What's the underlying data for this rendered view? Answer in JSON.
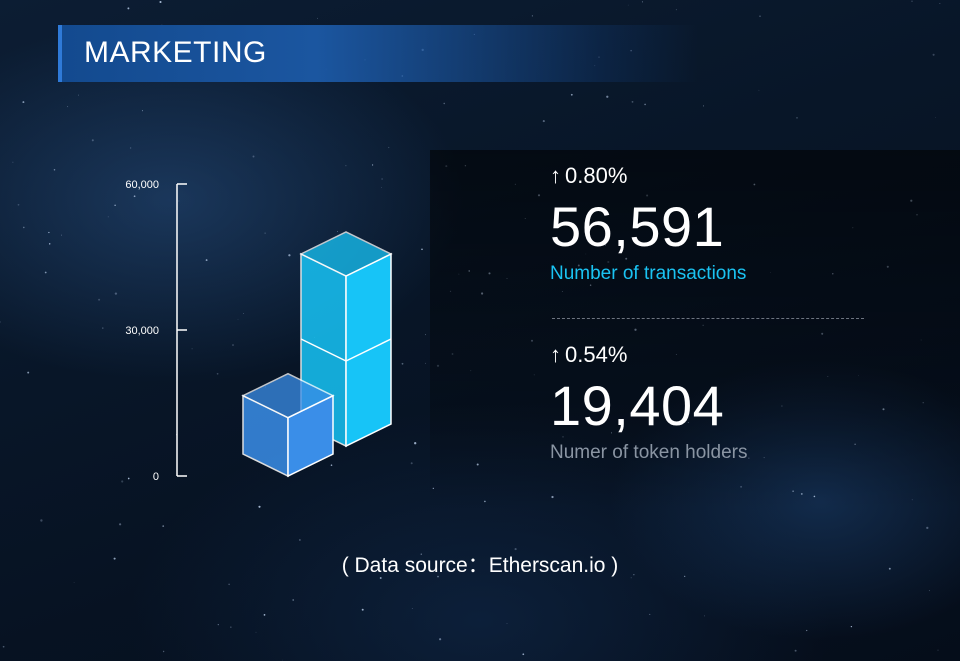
{
  "header": {
    "title": "MARKETING"
  },
  "chart_data": {
    "type": "bar",
    "style": "3d-isometric-cubes",
    "categories": [
      "Number of  transactions",
      "Numer of token holders"
    ],
    "values": [
      56591,
      19404
    ],
    "ylim": [
      0,
      60000
    ],
    "yticks": [
      0,
      30000,
      60000
    ],
    "ytick_labels": [
      "0",
      "30,000",
      "60,000"
    ],
    "colors": [
      "#17c4f7",
      "#3a8ee8"
    ],
    "grid": false
  },
  "stats": [
    {
      "change": "0.80%",
      "value": "56,591",
      "label": "Number of  transactions",
      "arrow_icon": "up-arrow-icon",
      "label_color": "#1ac3f2"
    },
    {
      "change": "0.54%",
      "value": "19,404",
      "label": "Numer of token holders",
      "arrow_icon": "up-arrow-icon",
      "label_color": "#8a95a3"
    }
  ],
  "footer": {
    "source": "( Data source：Etherscan.io )"
  }
}
